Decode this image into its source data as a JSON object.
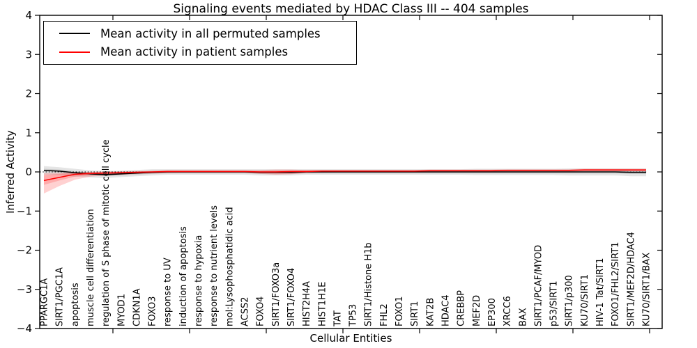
{
  "legend": {
    "items": [
      {
        "label": "Mean activity in all permuted samples",
        "color": "#000000"
      },
      {
        "label": "Mean activity in patient samples",
        "color": "#ff0000"
      }
    ]
  },
  "chart_data": {
    "type": "line",
    "title": "Signaling events mediated by HDAC Class III -- 404 samples",
    "xlabel": "Cellular Entities",
    "ylabel": "Inferred Activity",
    "ylim": [
      -4,
      4
    ],
    "yticks": [
      {
        "v": 4,
        "label": "4"
      },
      {
        "v": 3,
        "label": "3"
      },
      {
        "v": 2,
        "label": "2"
      },
      {
        "v": 1,
        "label": "1"
      },
      {
        "v": 0,
        "label": "0"
      },
      {
        "v": -1,
        "label": "−1"
      },
      {
        "v": -2,
        "label": "−2"
      },
      {
        "v": -3,
        "label": "−3"
      },
      {
        "v": -4,
        "label": "−4"
      }
    ],
    "legend_position": "upper left",
    "grid": false,
    "zero_line": {
      "value": 0,
      "style": "dotted",
      "color": "#000000"
    },
    "categories": [
      "PPARGC1A",
      "SIRT1/PGC1A",
      "apoptosis",
      "muscle cell differentiation",
      "regulation of S phase of mitotic cell cycle",
      "MYOD1",
      "CDKN1A",
      "FOXO3",
      "response to UV",
      "induction of apoptosis",
      "response to hypoxia",
      "response to nutrient levels",
      "mol:Lysophosphatidic acid",
      "ACSS2",
      "FOXO4",
      "SIRT1/FOXO3a",
      "SIRT1/FOXO4",
      "HIST2H4A",
      "HIST1H1E",
      "TAT",
      "TP53",
      "SIRT1/Histone H1b",
      "FHL2",
      "FOXO1",
      "SIRT1",
      "KAT2B",
      "HDAC4",
      "CREBBP",
      "MEF2D",
      "EP300",
      "XRCC6",
      "BAX",
      "SIRT1/PCAF/MYOD",
      "p53/SIRT1",
      "SIRT1/p300",
      "KU70/SIRT1",
      "HIV-1 Tat/SIRT1",
      "FOXO1/FHL2/SIRT1",
      "SIRT1/MEF2D/HDAC4",
      "KU70/SIRT1/BAX"
    ],
    "series": [
      {
        "name": "Mean activity in all permuted samples",
        "color": "#000000",
        "values": [
          0.04,
          0.02,
          -0.02,
          -0.05,
          -0.07,
          -0.05,
          -0.03,
          -0.01,
          0,
          0,
          0,
          0,
          0,
          0,
          -0.01,
          -0.01,
          -0.01,
          0,
          0,
          0,
          0,
          0,
          0,
          0,
          0,
          0,
          0,
          0,
          0,
          0,
          0,
          0,
          0,
          0,
          0,
          0,
          0,
          0,
          -0.01,
          -0.01
        ]
      },
      {
        "name": "Mean activity in patient samples",
        "color": "#ff0000",
        "values": [
          -0.22,
          -0.14,
          -0.06,
          -0.04,
          -0.03,
          -0.02,
          -0.01,
          0,
          0.01,
          0.01,
          0.01,
          0.01,
          0.01,
          0.01,
          0,
          0,
          0.01,
          0.01,
          0.02,
          0.02,
          0.02,
          0.02,
          0.02,
          0.02,
          0.02,
          0.03,
          0.03,
          0.03,
          0.03,
          0.03,
          0.04,
          0.04,
          0.04,
          0.04,
          0.04,
          0.05,
          0.05,
          0.05,
          0.05,
          0.05
        ]
      }
    ],
    "bands": [
      {
        "series": "permuted",
        "part": "outer",
        "color": "rgba(0,0,0,0.10)",
        "hi": [
          0.15,
          0.12,
          0.08,
          0.04,
          0.02,
          0.03,
          0.05,
          0.07,
          0.07,
          0.07,
          0.07,
          0.07,
          0.07,
          0.07,
          0.07,
          0.07,
          0.07,
          0.07,
          0.07,
          0.07,
          0.07,
          0.07,
          0.07,
          0.07,
          0.07,
          0.07,
          0.07,
          0.07,
          0.08,
          0.08,
          0.08,
          0.08,
          0.08,
          0.08,
          0.09,
          0.09,
          0.09,
          0.09,
          0.09,
          0.09
        ],
        "lo": [
          -0.07,
          -0.08,
          -0.12,
          -0.14,
          -0.16,
          -0.13,
          -0.11,
          -0.09,
          -0.07,
          -0.07,
          -0.07,
          -0.07,
          -0.07,
          -0.07,
          -0.09,
          -0.09,
          -0.09,
          -0.07,
          -0.07,
          -0.07,
          -0.07,
          -0.07,
          -0.07,
          -0.07,
          -0.07,
          -0.07,
          -0.07,
          -0.07,
          -0.08,
          -0.08,
          -0.08,
          -0.08,
          -0.08,
          -0.08,
          -0.09,
          -0.09,
          -0.09,
          -0.09,
          -0.11,
          -0.11
        ]
      },
      {
        "series": "permuted",
        "part": "inner",
        "color": "rgba(0,0,0,0.10)",
        "hi": [
          0.08,
          0.06,
          0.02,
          -0.01,
          -0.03,
          -0.01,
          0.01,
          0.03,
          0.04,
          0.04,
          0.04,
          0.04,
          0.04,
          0.04,
          0.03,
          0.03,
          0.03,
          0.04,
          0.04,
          0.04,
          0.04,
          0.04,
          0.04,
          0.04,
          0.04,
          0.04,
          0.04,
          0.04,
          0.04,
          0.04,
          0.04,
          0.04,
          0.04,
          0.04,
          0.04,
          0.04,
          0.04,
          0.04,
          0.03,
          0.03
        ],
        "lo": [
          0.0,
          -0.02,
          -0.06,
          -0.09,
          -0.11,
          -0.09,
          -0.07,
          -0.05,
          -0.04,
          -0.04,
          -0.04,
          -0.04,
          -0.04,
          -0.04,
          -0.05,
          -0.05,
          -0.05,
          -0.04,
          -0.04,
          -0.04,
          -0.04,
          -0.04,
          -0.04,
          -0.04,
          -0.04,
          -0.04,
          -0.04,
          -0.04,
          -0.04,
          -0.04,
          -0.04,
          -0.04,
          -0.04,
          -0.04,
          -0.04,
          -0.04,
          -0.04,
          -0.04,
          -0.05,
          -0.05
        ]
      },
      {
        "series": "patient",
        "part": "outer",
        "color": "rgba(255,0,0,0.18)",
        "hi": [
          -0.03,
          -0.02,
          -0.01,
          0.0,
          0.01,
          0.02,
          0.02,
          0.03,
          0.04,
          0.04,
          0.04,
          0.04,
          0.04,
          0.04,
          0.05,
          0.06,
          0.06,
          0.05,
          0.05,
          0.05,
          0.05,
          0.05,
          0.05,
          0.05,
          0.05,
          0.06,
          0.06,
          0.06,
          0.06,
          0.06,
          0.07,
          0.07,
          0.07,
          0.07,
          0.07,
          0.08,
          0.08,
          0.08,
          0.08,
          0.08
        ],
        "lo": [
          -0.55,
          -0.36,
          -0.2,
          -0.12,
          -0.09,
          -0.07,
          -0.05,
          -0.04,
          -0.03,
          -0.02,
          -0.02,
          -0.02,
          -0.02,
          -0.02,
          -0.05,
          -0.07,
          -0.06,
          -0.03,
          -0.02,
          -0.01,
          -0.01,
          -0.01,
          -0.01,
          -0.01,
          -0.01,
          0.0,
          0.0,
          0.0,
          0.0,
          0.0,
          0.01,
          0.01,
          0.01,
          0.01,
          0.01,
          0.02,
          0.02,
          0.02,
          0.02,
          0.02
        ]
      },
      {
        "series": "patient",
        "part": "inner",
        "color": "rgba(255,0,0,0.18)",
        "hi": [
          -0.08,
          -0.05,
          -0.02,
          -0.01,
          0.0,
          0.0,
          0.01,
          0.01,
          0.02,
          0.02,
          0.02,
          0.02,
          0.02,
          0.02,
          0.02,
          0.03,
          0.03,
          0.03,
          0.03,
          0.03,
          0.03,
          0.03,
          0.03,
          0.03,
          0.03,
          0.04,
          0.04,
          0.04,
          0.04,
          0.04,
          0.05,
          0.05,
          0.05,
          0.05,
          0.05,
          0.06,
          0.06,
          0.06,
          0.06,
          0.06
        ],
        "lo": [
          -0.33,
          -0.22,
          -0.12,
          -0.08,
          -0.06,
          -0.04,
          -0.03,
          -0.02,
          -0.01,
          0.0,
          0.0,
          0.0,
          0.0,
          0.0,
          -0.02,
          -0.03,
          -0.03,
          -0.01,
          0.0,
          0.01,
          0.01,
          0.01,
          0.01,
          0.01,
          0.01,
          0.02,
          0.02,
          0.02,
          0.02,
          0.02,
          0.03,
          0.03,
          0.03,
          0.03,
          0.03,
          0.04,
          0.04,
          0.04,
          0.04,
          0.04
        ]
      }
    ]
  }
}
